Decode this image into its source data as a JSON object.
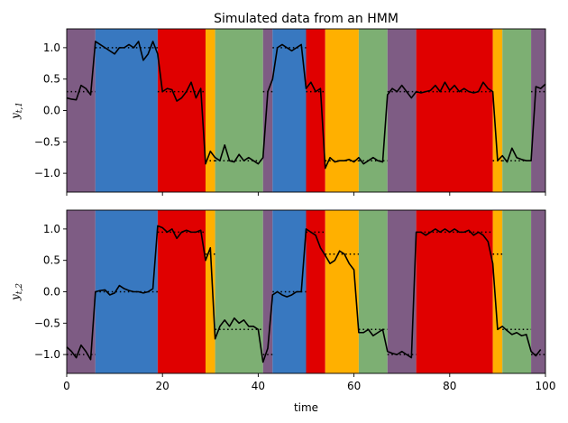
{
  "chart_data": {
    "type": "line",
    "title": "Simulated data from an HMM",
    "xlabel": "time",
    "xlim": [
      0,
      100
    ],
    "xticks": [
      "0",
      "20",
      "40",
      "60",
      "80",
      "100"
    ],
    "yticks": [
      "1.0",
      "0.5",
      "0.0",
      "−0.5",
      "−1.0"
    ],
    "state_colors": {
      "purple": "#7e5c84",
      "blue": "#3878c0",
      "red": "#e00000",
      "orange": "#ffb000",
      "green": "#7daf73"
    },
    "state_segments": [
      {
        "start": 0,
        "end": 6,
        "state": "purple"
      },
      {
        "start": 6,
        "end": 19,
        "state": "blue"
      },
      {
        "start": 19,
        "end": 29,
        "state": "red"
      },
      {
        "start": 29,
        "end": 31,
        "state": "orange"
      },
      {
        "start": 31,
        "end": 41,
        "state": "green"
      },
      {
        "start": 41,
        "end": 43,
        "state": "purple"
      },
      {
        "start": 43,
        "end": 50,
        "state": "blue"
      },
      {
        "start": 50,
        "end": 54,
        "state": "red"
      },
      {
        "start": 54,
        "end": 61,
        "state": "orange"
      },
      {
        "start": 61,
        "end": 67,
        "state": "green"
      },
      {
        "start": 67,
        "end": 73,
        "state": "purple"
      },
      {
        "start": 73,
        "end": 89,
        "state": "red"
      },
      {
        "start": 89,
        "end": 91,
        "state": "orange"
      },
      {
        "start": 91,
        "end": 97,
        "state": "green"
      },
      {
        "start": 97,
        "end": 100,
        "state": "purple"
      }
    ],
    "panels": [
      {
        "ylabel": "y_{t,1}",
        "ylim": [
          -1.3,
          1.3
        ],
        "state_means": {
          "purple": 0.3,
          "blue": 1.0,
          "red": 0.3,
          "orange": -0.8,
          "green": -0.8
        },
        "observed": [
          0.2,
          0.18,
          0.17,
          0.4,
          0.35,
          0.25,
          1.1,
          1.05,
          1.0,
          0.95,
          0.9,
          1.0,
          1.0,
          1.05,
          1.0,
          1.1,
          0.8,
          0.9,
          1.1,
          0.9,
          0.3,
          0.35,
          0.33,
          0.15,
          0.2,
          0.3,
          0.45,
          0.2,
          0.35,
          -0.85,
          -0.65,
          -0.75,
          -0.8,
          -0.55,
          -0.8,
          -0.82,
          -0.7,
          -0.8,
          -0.75,
          -0.8,
          -0.85,
          -0.75,
          0.3,
          0.5,
          1.0,
          1.05,
          1.0,
          0.95,
          1.0,
          1.05,
          0.35,
          0.45,
          0.3,
          0.35,
          -0.92,
          -0.75,
          -0.82,
          -0.8,
          -0.8,
          -0.78,
          -0.82,
          -0.75,
          -0.85,
          -0.8,
          -0.75,
          -0.8,
          -0.82,
          0.25,
          0.35,
          0.3,
          0.4,
          0.3,
          0.2,
          0.3,
          0.28,
          0.3,
          0.32,
          0.4,
          0.3,
          0.45,
          0.32,
          0.4,
          0.3,
          0.35,
          0.3,
          0.28,
          0.3,
          0.45,
          0.35,
          0.3,
          -0.8,
          -0.72,
          -0.82,
          -0.6,
          -0.75,
          -0.78,
          -0.8,
          -0.8,
          0.38,
          0.35,
          0.42
        ]
      },
      {
        "ylabel": "y_{t,2}",
        "ylim": [
          -1.3,
          1.3
        ],
        "state_means": {
          "purple": -1.0,
          "blue": 0.0,
          "red": 0.95,
          "orange": 0.6,
          "green": -0.6
        },
        "observed": [
          -0.88,
          -0.95,
          -1.05,
          -0.85,
          -0.95,
          -1.08,
          0.0,
          0.02,
          0.03,
          -0.05,
          -0.02,
          0.1,
          0.05,
          0.02,
          0.0,
          0.0,
          -0.02,
          0.0,
          0.05,
          1.05,
          1.02,
          0.95,
          1.0,
          0.85,
          0.95,
          0.98,
          0.95,
          0.95,
          0.98,
          0.5,
          0.7,
          -0.75,
          -0.55,
          -0.45,
          -0.55,
          -0.42,
          -0.5,
          -0.45,
          -0.55,
          -0.55,
          -0.6,
          -1.12,
          -0.9,
          -0.05,
          0.0,
          -0.05,
          -0.08,
          -0.05,
          0.0,
          0.0,
          1.0,
          0.95,
          0.9,
          0.7,
          0.58,
          0.45,
          0.5,
          0.65,
          0.6,
          0.45,
          0.35,
          -0.65,
          -0.65,
          -0.6,
          -0.7,
          -0.65,
          -0.6,
          -0.95,
          -0.98,
          -1.0,
          -0.95,
          -1.0,
          -1.05,
          0.95,
          0.95,
          0.9,
          0.95,
          1.0,
          0.95,
          1.0,
          0.95,
          1.0,
          0.95,
          0.95,
          0.98,
          0.9,
          0.95,
          0.9,
          0.8,
          0.45,
          -0.6,
          -0.55,
          -0.62,
          -0.68,
          -0.65,
          -0.7,
          -0.68,
          -0.95,
          -1.02,
          -0.92
        ]
      }
    ]
  }
}
